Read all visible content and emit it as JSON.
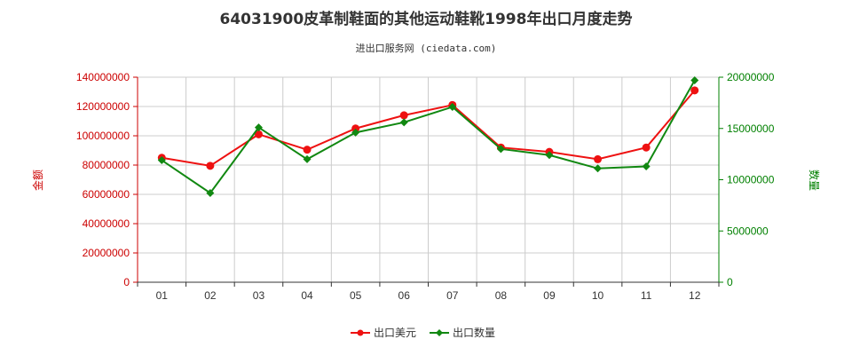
{
  "chart_data": {
    "type": "line",
    "title": "64031900皮革制鞋面的其他运动鞋靴1998年出口月度走势",
    "subtitle": "进出口服务网 (ciedata.com)",
    "categories": [
      "01",
      "02",
      "03",
      "04",
      "05",
      "06",
      "07",
      "08",
      "09",
      "10",
      "11",
      "12"
    ],
    "y_left": {
      "label": "金额",
      "range": [
        0,
        140000000
      ],
      "ticks": [
        "0",
        "20000000",
        "40000000",
        "60000000",
        "80000000",
        "100000000",
        "120000000",
        "140000000"
      ],
      "color": "#cc0000"
    },
    "y_right": {
      "label": "数量",
      "range": [
        0,
        20000000
      ],
      "ticks": [
        "0",
        "5000000",
        "10000000",
        "15000000",
        "20000000"
      ],
      "color": "#008000"
    },
    "series": [
      {
        "name": "出口美元",
        "axis": "left",
        "color": "#ee1111",
        "marker": "circle",
        "values": [
          85000000,
          79500000,
          101000000,
          90500000,
          105000000,
          114000000,
          121000000,
          92000000,
          89000000,
          84000000,
          92000000,
          131000000
        ]
      },
      {
        "name": "出口数量",
        "axis": "right",
        "color": "#118811",
        "marker": "diamond",
        "values": [
          11900000,
          8700000,
          15100000,
          12000000,
          14600000,
          15600000,
          17100000,
          13000000,
          12400000,
          11100000,
          11300000,
          19700000
        ]
      }
    ],
    "grid": true,
    "legend": "bottom-center"
  }
}
